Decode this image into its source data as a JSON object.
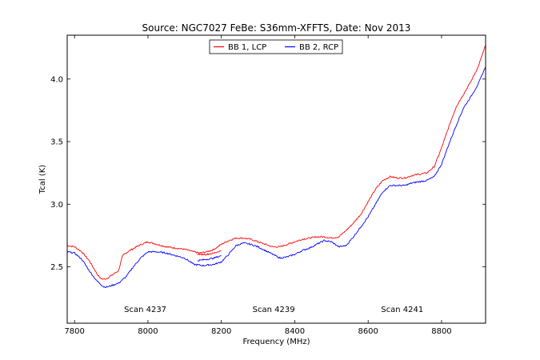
{
  "chart_data": {
    "type": "line",
    "title": "Source: NGC7027 FeBe: S36mm-XFFTS, Date: Nov 2013",
    "xlabel": "Frequency (MHz)",
    "ylabel": "Tcal (K)",
    "xlim": [
      7780,
      8920
    ],
    "ylim": [
      2.05,
      4.35
    ],
    "xticks": [
      7800,
      8000,
      8200,
      8400,
      8600,
      8800
    ],
    "yticks": [
      2.5,
      3.0,
      3.5,
      4.0
    ],
    "xtick_labels": [
      "7800",
      "8000",
      "8200",
      "8400",
      "8600",
      "8800"
    ],
    "ytick_labels": [
      "2.5",
      "3.0",
      "3.5",
      "4.0"
    ],
    "legend_position": "top-center",
    "grid": false,
    "annotations": [
      {
        "text": "Scan 4237",
        "x": 7935,
        "y": 2.14
      },
      {
        "text": "Scan 4239",
        "x": 8285,
        "y": 2.14
      },
      {
        "text": "Scan 4241",
        "x": 8635,
        "y": 2.14
      }
    ],
    "series": [
      {
        "name": "BB 1, LCP",
        "color": "#ff0000",
        "x": [
          7780,
          7800,
          7820,
          7840,
          7860,
          7870,
          7880,
          7890,
          7900,
          7920,
          7930,
          7935,
          7950,
          7975,
          8000,
          8025,
          8050,
          8075,
          8100,
          8125,
          8140,
          8160,
          8180,
          8200,
          8220,
          8240,
          8260,
          8280,
          8300,
          8320,
          8340,
          8360,
          8380,
          8400,
          8420,
          8440,
          8460,
          8480,
          8500,
          8520,
          8540,
          8560,
          8580,
          8600,
          8620,
          8640,
          8660,
          8680,
          8700,
          8720,
          8740,
          8760,
          8780,
          8800,
          8820,
          8840,
          8860,
          8880,
          8900,
          8920
        ],
        "values": [
          2.67,
          2.66,
          2.62,
          2.55,
          2.45,
          2.41,
          2.4,
          2.41,
          2.43,
          2.47,
          2.58,
          2.6,
          2.63,
          2.67,
          2.7,
          2.68,
          2.66,
          2.65,
          2.64,
          2.62,
          2.61,
          2.62,
          2.64,
          2.68,
          2.71,
          2.73,
          2.73,
          2.72,
          2.7,
          2.68,
          2.66,
          2.66,
          2.68,
          2.7,
          2.72,
          2.73,
          2.74,
          2.74,
          2.73,
          2.74,
          2.79,
          2.85,
          2.92,
          3.02,
          3.12,
          3.19,
          3.22,
          3.21,
          3.21,
          3.23,
          3.24,
          3.25,
          3.3,
          3.45,
          3.62,
          3.78,
          3.88,
          3.98,
          4.1,
          4.27
        ]
      },
      {
        "name": "BB 2, RCP",
        "color": "#0000ff",
        "x": [
          7780,
          7800,
          7820,
          7840,
          7860,
          7880,
          7890,
          7900,
          7920,
          7940,
          7960,
          7980,
          8000,
          8025,
          8050,
          8075,
          8100,
          8125,
          8150,
          8180,
          8200,
          8220,
          8240,
          8260,
          8280,
          8300,
          8320,
          8340,
          8360,
          8380,
          8400,
          8420,
          8440,
          8460,
          8480,
          8500,
          8520,
          8540,
          8560,
          8580,
          8600,
          8620,
          8640,
          8660,
          8680,
          8700,
          8720,
          8740,
          8760,
          8780,
          8800,
          8820,
          8840,
          8860,
          8880,
          8900,
          8920
        ],
        "values": [
          2.62,
          2.61,
          2.56,
          2.47,
          2.39,
          2.34,
          2.34,
          2.35,
          2.37,
          2.42,
          2.5,
          2.57,
          2.62,
          2.62,
          2.61,
          2.59,
          2.57,
          2.52,
          2.51,
          2.52,
          2.54,
          2.6,
          2.67,
          2.69,
          2.68,
          2.66,
          2.63,
          2.6,
          2.57,
          2.58,
          2.6,
          2.63,
          2.65,
          2.68,
          2.71,
          2.7,
          2.66,
          2.67,
          2.74,
          2.82,
          2.9,
          3.0,
          3.1,
          3.15,
          3.15,
          3.15,
          3.17,
          3.18,
          3.19,
          3.22,
          3.32,
          3.48,
          3.63,
          3.77,
          3.86,
          3.96,
          4.1
        ]
      },
      {
        "name": "",
        "color": "#ff0000",
        "x": [
          8135,
          8160,
          8180,
          8200
        ],
        "values": [
          2.6,
          2.6,
          2.61,
          2.63
        ]
      },
      {
        "name": "",
        "color": "#0000ff",
        "x": [
          8135,
          8160,
          8180,
          8200
        ],
        "values": [
          2.55,
          2.56,
          2.57,
          2.59
        ]
      }
    ]
  }
}
